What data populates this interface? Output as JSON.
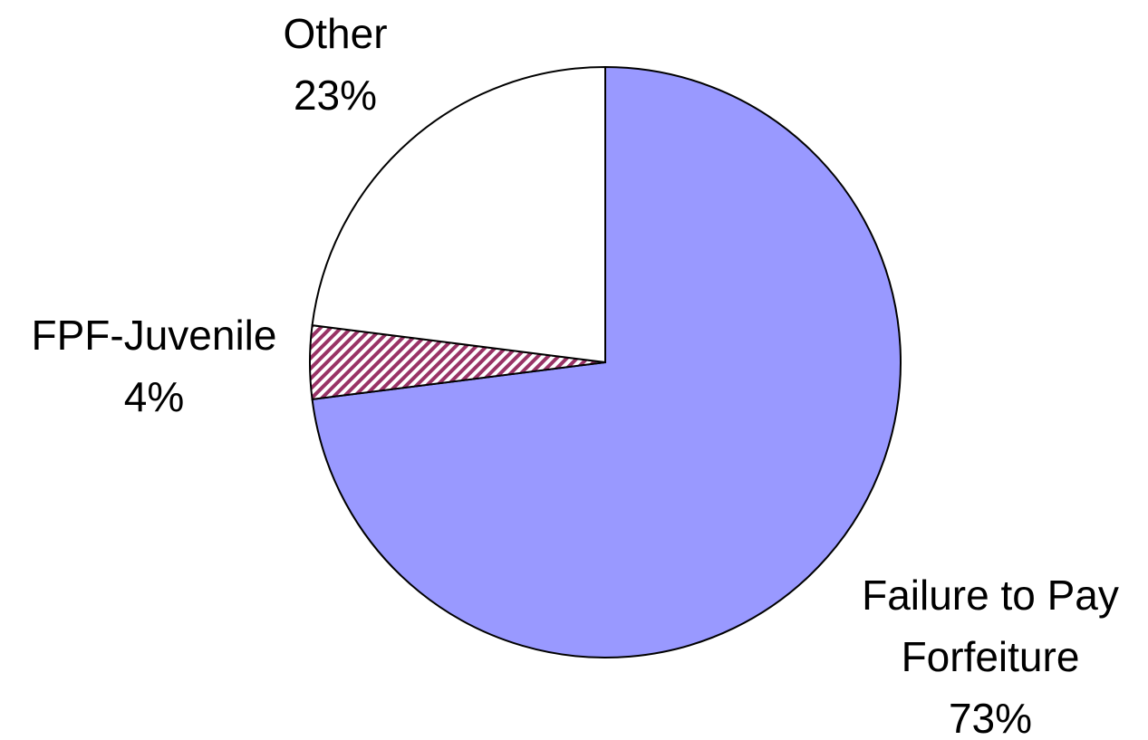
{
  "chart_data": {
    "type": "pie",
    "categories": [
      "Failure to Pay Forfeiture",
      "FPF-Juvenile",
      "Other"
    ],
    "values": [
      73,
      4,
      23
    ],
    "value_labels": [
      "73%",
      "4%",
      "23%"
    ],
    "colors": [
      "#9999ff",
      "#993366",
      "#ffffff"
    ],
    "hatch": [
      false,
      true,
      false
    ]
  }
}
